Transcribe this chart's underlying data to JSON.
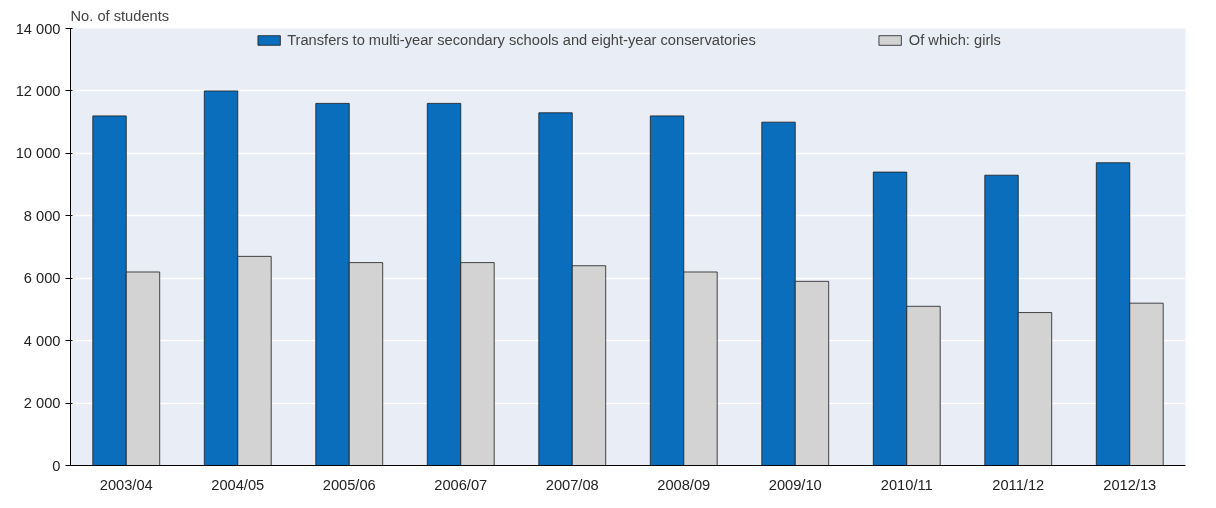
{
  "chart_data": {
    "type": "bar",
    "ylabel": "No. of students",
    "categories": [
      "2003/04",
      "2004/05",
      "2005/06",
      "2006/07",
      "2007/08",
      "2008/09",
      "2009/10",
      "2010/11",
      "2011/12",
      "2012/13"
    ],
    "series": [
      {
        "name": "Transfers to multi-year secondary schools and eight-year conservatories",
        "color": "#0a6ebd",
        "values": [
          11200,
          12000,
          11600,
          11600,
          11300,
          11200,
          11000,
          9400,
          9300,
          9700
        ]
      },
      {
        "name": "Of which: girls",
        "color": "#d3d3d3",
        "values": [
          6200,
          6700,
          6500,
          6500,
          6400,
          6200,
          5900,
          5100,
          4900,
          5200
        ]
      }
    ],
    "ylim": [
      0,
      14000
    ],
    "yticks": [
      {
        "value": 0,
        "label": "0"
      },
      {
        "value": 2000,
        "label": "2 000"
      },
      {
        "value": 4000,
        "label": "4 000"
      },
      {
        "value": 6000,
        "label": "6 000"
      },
      {
        "value": 8000,
        "label": "8 000"
      },
      {
        "value": 10000,
        "label": "10 000"
      },
      {
        "value": 12000,
        "label": "12 000"
      },
      {
        "value": 14000,
        "label": "14 000"
      }
    ],
    "grid": "y",
    "legend": "top"
  }
}
